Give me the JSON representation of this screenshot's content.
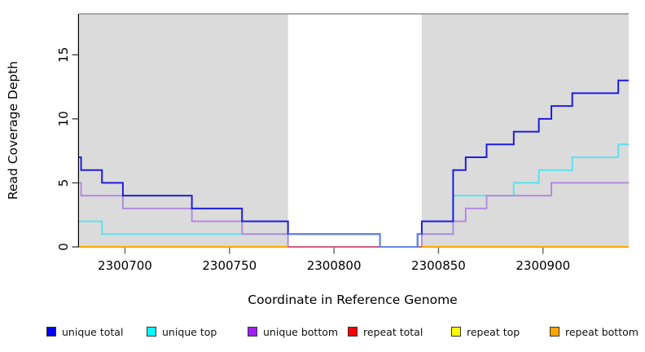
{
  "chart_data": {
    "type": "line",
    "step_style": "post",
    "title": "",
    "xlabel": "Coordinate in Reference Genome",
    "ylabel": "Read Coverage Depth",
    "xlim": [
      2300678,
      2300941
    ],
    "ylim": [
      0,
      18.2
    ],
    "x_ticks": [
      2300700,
      2300750,
      2300800,
      2300850,
      2300900
    ],
    "y_ticks": [
      0,
      5,
      10,
      15
    ],
    "grid": false,
    "legend_position": "bottom",
    "shaded_color": "#DBDBDB",
    "shaded_regions": [
      [
        2300678,
        2300778
      ],
      [
        2300842,
        2300941
      ]
    ],
    "gap_region": [
      2300778,
      2300842
    ],
    "draw_order": [
      "repeat top",
      "unique top",
      "unique bottom",
      "repeat total",
      "unique total",
      "repeat bottom"
    ],
    "series": [
      {
        "name": "unique total",
        "legend_color": "#0000FF",
        "line_color": "#1E1EDC",
        "gap_line_color": "#6787E8",
        "steps": [
          [
            2300678,
            7
          ],
          [
            2300679,
            6
          ],
          [
            2300689,
            5
          ],
          [
            2300699,
            4
          ],
          [
            2300732,
            3
          ],
          [
            2300756,
            2
          ],
          [
            2300778,
            1
          ],
          [
            2300822,
            0
          ],
          [
            2300840,
            1
          ],
          [
            2300842,
            2
          ],
          [
            2300857,
            6
          ],
          [
            2300863,
            7
          ],
          [
            2300873,
            8
          ],
          [
            2300886,
            9
          ],
          [
            2300898,
            10
          ],
          [
            2300904,
            11
          ],
          [
            2300914,
            12
          ],
          [
            2300936,
            13
          ]
        ]
      },
      {
        "name": "unique top",
        "legend_color": "#00FFFF",
        "line_color": "#5BE2F0",
        "steps": [
          [
            2300678,
            2
          ],
          [
            2300689,
            1
          ],
          [
            2300822,
            0
          ],
          [
            2300840,
            1
          ],
          [
            2300857,
            4
          ],
          [
            2300886,
            5
          ],
          [
            2300898,
            6
          ],
          [
            2300914,
            7
          ],
          [
            2300936,
            8
          ]
        ]
      },
      {
        "name": "unique bottom",
        "legend_color": "#A020F0",
        "line_color": "#B48BDF",
        "steps": [
          [
            2300678,
            5
          ],
          [
            2300679,
            4
          ],
          [
            2300699,
            3
          ],
          [
            2300732,
            2
          ],
          [
            2300756,
            1
          ],
          [
            2300778,
            0
          ],
          [
            2300842,
            1
          ],
          [
            2300857,
            2
          ],
          [
            2300863,
            3
          ],
          [
            2300873,
            4
          ],
          [
            2300904,
            5
          ]
        ]
      },
      {
        "name": "repeat total",
        "legend_color": "#FF0000",
        "line_color": "#CE5E84",
        "steps": [
          [
            2300678,
            0
          ]
        ]
      },
      {
        "name": "repeat top",
        "legend_color": "#FFFF00",
        "line_color": "#FFFF00",
        "steps": [
          [
            2300678,
            0
          ]
        ]
      },
      {
        "name": "repeat bottom",
        "legend_color": "#FFA500",
        "line_color": "#FFA500",
        "steps": [
          [
            2300678,
            0
          ]
        ]
      }
    ]
  },
  "legend": {
    "items": [
      {
        "label": "unique total",
        "color": "#0000FF"
      },
      {
        "label": "unique top",
        "color": "#00FFFF"
      },
      {
        "label": "unique bottom",
        "color": "#A020F0"
      },
      {
        "label": "repeat total",
        "color": "#FF0000"
      },
      {
        "label": "repeat top",
        "color": "#FFFF00"
      },
      {
        "label": "repeat bottom",
        "color": "#FFA500"
      }
    ]
  }
}
